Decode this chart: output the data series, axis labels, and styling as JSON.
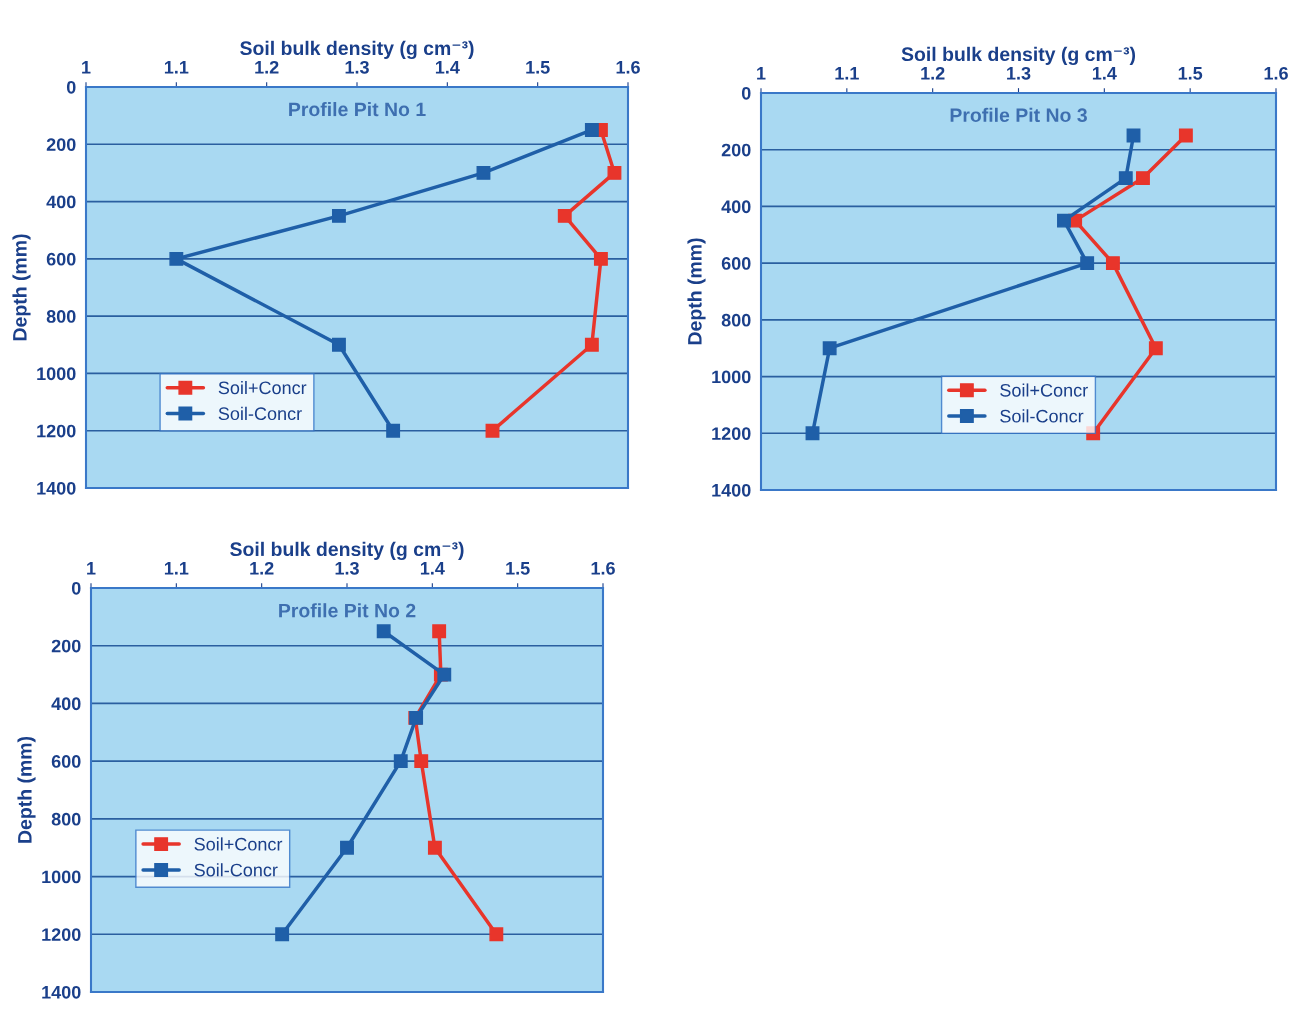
{
  "chart_data": [
    {
      "type": "line",
      "title": "Profile Pit No 1",
      "xlabel": "Soil bulk density (g cm⁻³)",
      "ylabel": "Depth (mm)",
      "xlim": [
        1,
        1.6
      ],
      "xticks": [
        1,
        1.1,
        1.2,
        1.3,
        1.4,
        1.5,
        1.6
      ],
      "ylim": [
        1400,
        0
      ],
      "yticks": [
        0,
        200,
        400,
        600,
        800,
        1000,
        1200,
        1400
      ],
      "grid": "y",
      "legend": "bottom left",
      "marker": "square",
      "series": [
        {
          "name": "Soil+Concr",
          "color": "#e8352b",
          "x": [
            1.57,
            1.585,
            1.53,
            1.57,
            1.56,
            1.45
          ],
          "values": [
            150,
            300,
            450,
            600,
            900,
            1200
          ]
        },
        {
          "name": "Soil-Concr",
          "color": "#1f5fa8",
          "x": [
            1.56,
            1.44,
            1.28,
            1.1,
            1.28,
            1.34
          ],
          "values": [
            150,
            300,
            450,
            600,
            900,
            1200
          ]
        }
      ]
    },
    {
      "type": "line",
      "title": "Profile Pit No 3",
      "xlabel": "Soil bulk density (g cm⁻³)",
      "ylabel": "Depth (mm)",
      "xlim": [
        1,
        1.6
      ],
      "xticks": [
        1,
        1.1,
        1.2,
        1.3,
        1.4,
        1.5,
        1.6
      ],
      "ylim": [
        1400,
        0
      ],
      "yticks": [
        0,
        200,
        400,
        600,
        800,
        1000,
        1200,
        1400
      ],
      "grid": "y",
      "legend": "bottom",
      "marker": "square",
      "series": [
        {
          "name": "Soil+Concr",
          "color": "#e8352b",
          "x": [
            1.495,
            1.445,
            1.366,
            1.41,
            1.46,
            1.387
          ],
          "values": [
            150,
            300,
            450,
            600,
            900,
            1200
          ]
        },
        {
          "name": "Soil-Concr",
          "color": "#1f5fa8",
          "x": [
            1.434,
            1.425,
            1.353,
            1.38,
            1.08,
            1.06
          ],
          "values": [
            150,
            300,
            450,
            600,
            900,
            1200
          ]
        }
      ]
    },
    {
      "type": "line",
      "title": "Profile Pit No 2",
      "xlabel": "Soil bulk density (g cm⁻³)",
      "ylabel": "Depth (mm)",
      "xlim": [
        1,
        1.6
      ],
      "xticks": [
        1,
        1.1,
        1.2,
        1.3,
        1.4,
        1.5,
        1.6
      ],
      "ylim": [
        1400,
        0
      ],
      "yticks": [
        0,
        200,
        400,
        600,
        800,
        1000,
        1200,
        1400
      ],
      "grid": "y",
      "legend": "left",
      "marker": "square",
      "series": [
        {
          "name": "Soil+Concr",
          "color": "#e8352b",
          "x": [
            1.408,
            1.41,
            1.38,
            1.387,
            1.403,
            1.475
          ],
          "values": [
            150,
            300,
            450,
            600,
            900,
            1200
          ]
        },
        {
          "name": "Soil-Concr",
          "color": "#1f5fa8",
          "x": [
            1.343,
            1.414,
            1.381,
            1.363,
            1.3,
            1.224
          ],
          "values": [
            150,
            300,
            450,
            600,
            900,
            1200
          ]
        }
      ]
    }
  ]
}
